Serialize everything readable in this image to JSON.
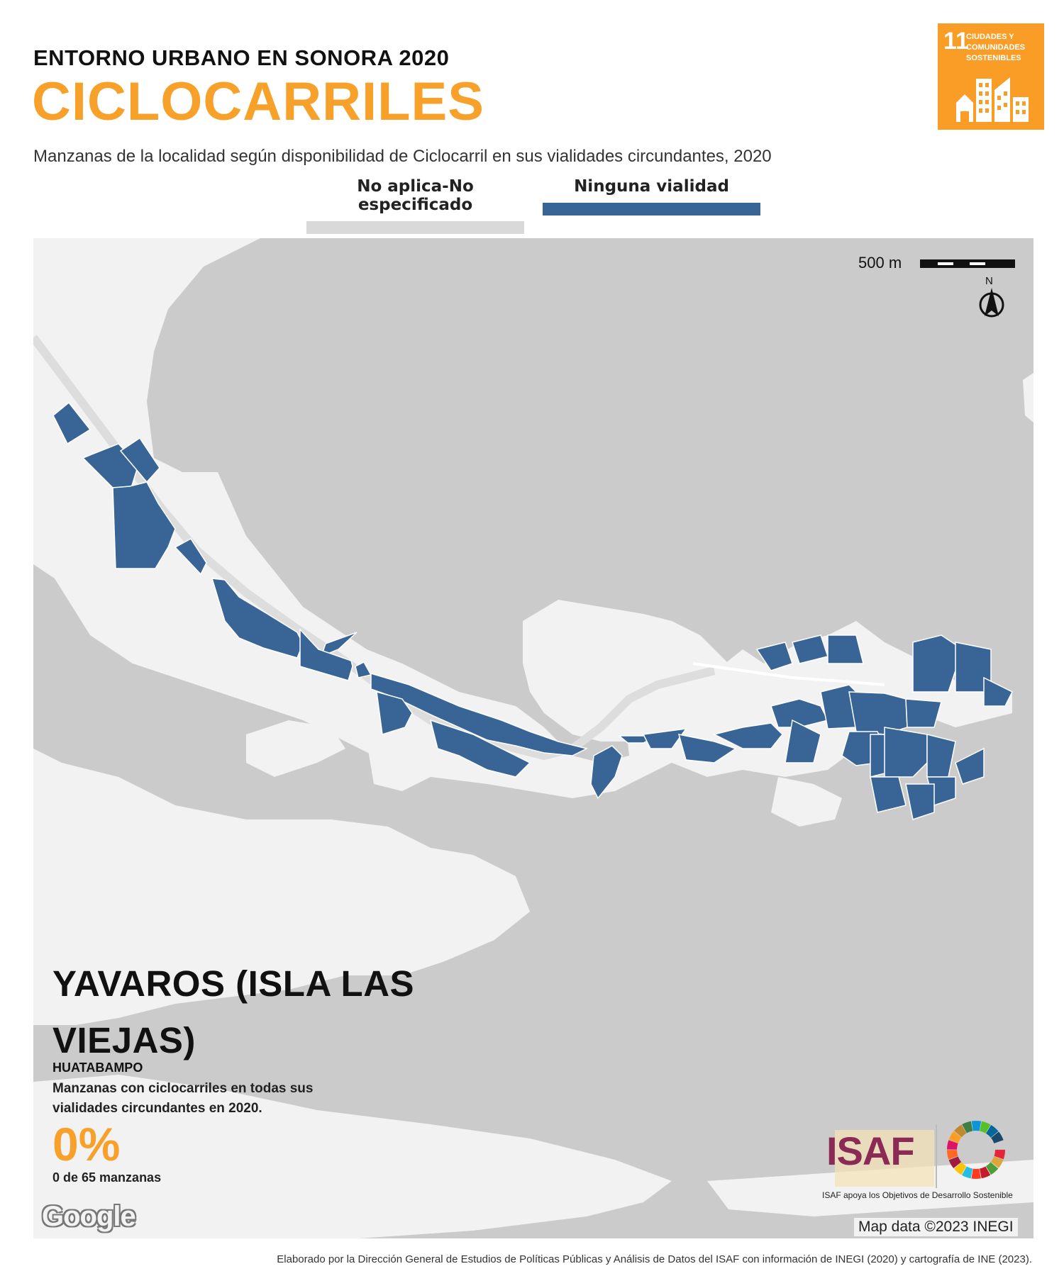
{
  "header": {
    "kicker": "ENTORNO URBANO EN SONORA 2020",
    "title": "CICLOCARRILES",
    "subtitle": "Manzanas de la localidad según disponibilidad de Ciclocarril en sus vialidades circundantes, 2020"
  },
  "sdg_badge": {
    "number": "11",
    "label": "CIUDADES Y COMUNIDADES SOSTENIBLES",
    "color": "#f99d26",
    "icon": "city-buildings-icon"
  },
  "legend": [
    {
      "label": "No aplica-No especificado",
      "color": "#d9d9d9"
    },
    {
      "label": "Ninguna vialidad",
      "color": "#386596"
    }
  ],
  "map": {
    "scale_label": "500 m",
    "north_label": "N",
    "locality": "YAVAROS (ISLA LAS VIEJAS)",
    "municipality": "HUATABAMPO",
    "indicator_text": "Manzanas con ciclocarriles en todas sus vialidades circundantes en 2020.",
    "indicator_value": "0%",
    "indicator_count": "0 de 65 manzanas",
    "basemap_logo": "Google",
    "credit": "Map data ©2023 INEGI",
    "colors": {
      "water": "#cbcbcb",
      "land": "#f2f2f2",
      "blocks": "#386596",
      "roads": "#ffffff"
    }
  },
  "branding": {
    "isaf": "ISAF",
    "isaf_tagline": "ISAF apoya los Objetivos de Desarrollo Sostenible"
  },
  "footer": "Elaborado por la Dirección General de Estudios de Políticas Públicas y Análisis de Datos del ISAF con información de INEGI (2020) y cartografía de INE (2023)."
}
